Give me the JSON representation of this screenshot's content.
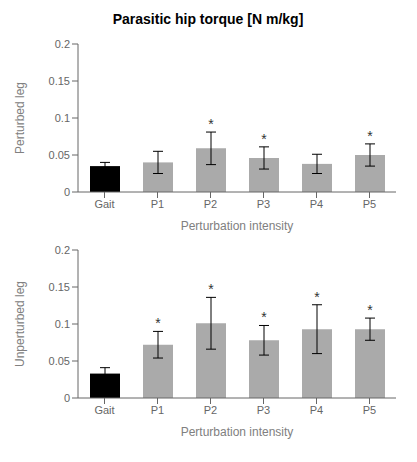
{
  "chart_data": [
    {
      "type": "bar",
      "title": "Parasitic hip torque [N m/kg]",
      "categories": [
        "Gait",
        "P1",
        "P2",
        "P3",
        "P4",
        "P5"
      ],
      "values": [
        0.035,
        0.04,
        0.059,
        0.046,
        0.038,
        0.05
      ],
      "errors": [
        0.005,
        0.015,
        0.022,
        0.015,
        0.013,
        0.015
      ],
      "colors": [
        "#000000",
        "#aaaaaa",
        "#aaaaaa",
        "#aaaaaa",
        "#aaaaaa",
        "#aaaaaa"
      ],
      "xlabel": "Perturbation intensity",
      "ylabel": "Perturbed leg",
      "ylim": [
        0,
        0.2
      ],
      "yticks": [
        0,
        0.05,
        0.1,
        0.15,
        0.2
      ],
      "grid": false,
      "annotations": [
        {
          "category": "P2",
          "text": "*"
        },
        {
          "category": "P3",
          "text": "*"
        },
        {
          "category": "P5",
          "text": "*"
        }
      ]
    },
    {
      "type": "bar",
      "categories": [
        "Gait",
        "P1",
        "P2",
        "P3",
        "P4",
        "P5"
      ],
      "values": [
        0.033,
        0.072,
        0.101,
        0.078,
        0.093,
        0.093
      ],
      "errors": [
        0.008,
        0.018,
        0.035,
        0.02,
        0.033,
        0.015
      ],
      "colors": [
        "#000000",
        "#aaaaaa",
        "#aaaaaa",
        "#aaaaaa",
        "#aaaaaa",
        "#aaaaaa"
      ],
      "xlabel": "Perturbation intensity",
      "ylabel": "Unperturbed leg",
      "ylim": [
        0,
        0.2
      ],
      "yticks": [
        0,
        0.05,
        0.1,
        0.15,
        0.2
      ],
      "grid": false,
      "annotations": [
        {
          "category": "P1",
          "text": "*"
        },
        {
          "category": "P2",
          "text": "*"
        },
        {
          "category": "P3",
          "text": "*"
        },
        {
          "category": "P4",
          "text": "*"
        },
        {
          "category": "P5",
          "text": "*"
        }
      ]
    }
  ]
}
